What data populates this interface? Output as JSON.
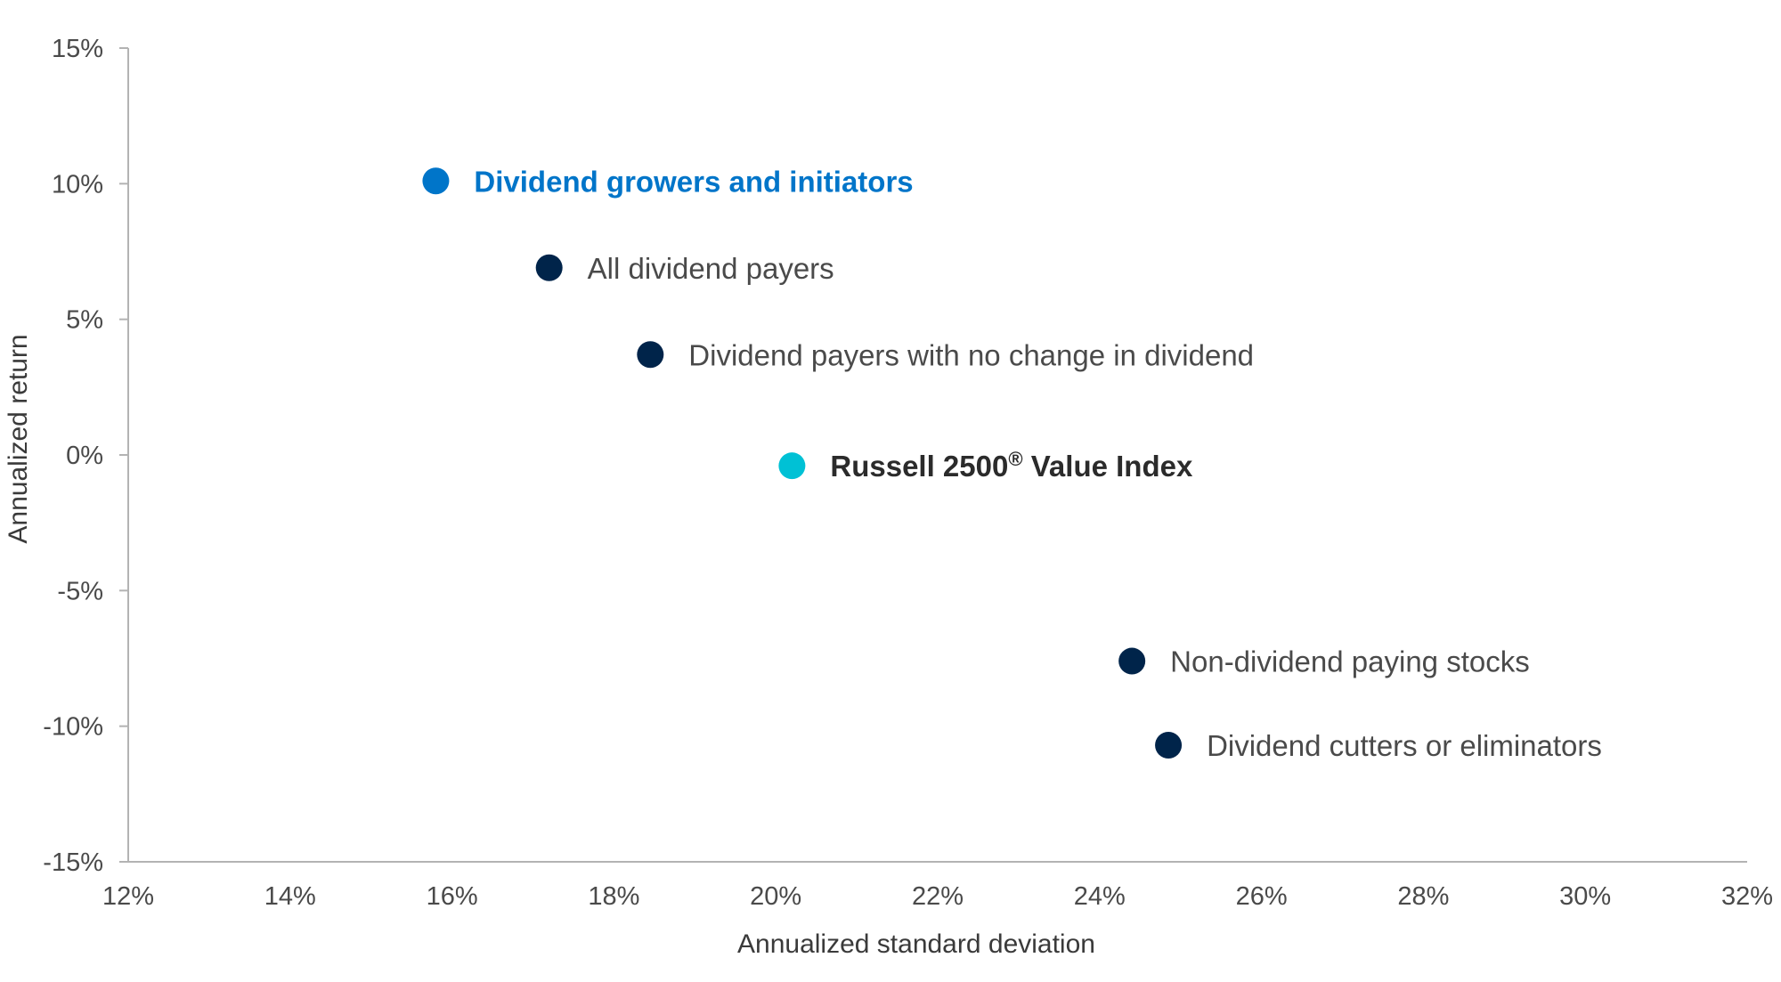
{
  "chart_data": {
    "type": "scatter",
    "xlabel": "Annualized standard deviation",
    "ylabel": "Annualized return",
    "xlim": [
      12,
      32
    ],
    "ylim": [
      -15,
      15
    ],
    "x_ticks": [
      12,
      14,
      16,
      18,
      20,
      22,
      24,
      26,
      28,
      30,
      32
    ],
    "y_ticks": [
      15,
      10,
      5,
      0,
      -5,
      -10,
      -15
    ],
    "x_tick_labels": [
      "12%",
      "14%",
      "16%",
      "18%",
      "20%",
      "22%",
      "24%",
      "26%",
      "28%",
      "30%",
      "32%"
    ],
    "y_tick_labels": [
      "15%",
      "10%",
      "5%",
      "0%",
      "-5%",
      "-10%",
      "-15%"
    ],
    "grid": false,
    "series": [
      {
        "name": "Dividend growers and initiators",
        "x": 15.8,
        "y": 10.1,
        "color": "#0075c9",
        "label_color": "#0075c9",
        "label_weight": "bold"
      },
      {
        "name": "All dividend payers",
        "x": 17.2,
        "y": 6.9,
        "color": "#00244a",
        "label_color": "#4a4a4a",
        "label_weight": "normal"
      },
      {
        "name": "Dividend payers with no change in dividend",
        "x": 18.45,
        "y": 3.7,
        "color": "#00244a",
        "label_color": "#4a4a4a",
        "label_weight": "normal"
      },
      {
        "name": "Russell 2500",
        "name_sup": "®",
        "name_suffix": " Value Index",
        "x": 20.2,
        "y": -0.4,
        "color": "#00c1d5",
        "label_color": "#2b2b2b",
        "label_weight": "bold"
      },
      {
        "name": "Non-dividend paying stocks",
        "x": 24.4,
        "y": -7.6,
        "color": "#00244a",
        "label_color": "#4a4a4a",
        "label_weight": "normal"
      },
      {
        "name": "Dividend cutters or eliminators",
        "x": 24.85,
        "y": -10.7,
        "color": "#00244a",
        "label_color": "#4a4a4a",
        "label_weight": "normal"
      }
    ]
  }
}
